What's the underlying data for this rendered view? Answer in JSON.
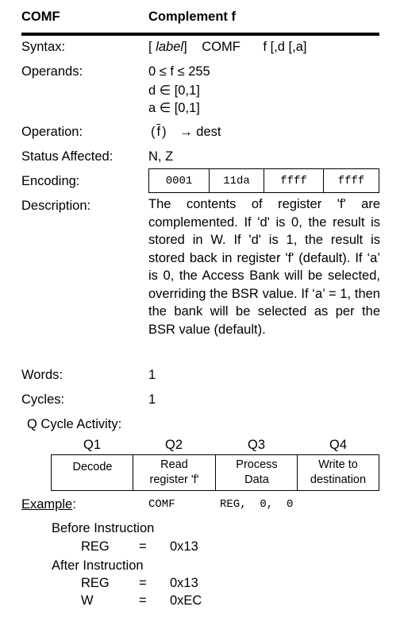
{
  "header": {
    "mnemonic": "COMF",
    "title": "Complement f"
  },
  "syntax": {
    "label": "Syntax:",
    "open_bracket": "[",
    "label_arg": "label",
    "close_bracket": "]",
    "mnemonic": "COMF",
    "operands": "f [,d [,a]"
  },
  "operands": {
    "label": "Operands:",
    "lines": [
      "0 ≤ f ≤ 255",
      "d ∈ [0,1]",
      "a ∈ [0,1]"
    ]
  },
  "operation": {
    "label": "Operation:",
    "open_paren": "(",
    "operand": "f",
    "close_paren": ")",
    "result": "→ dest"
  },
  "status": {
    "label": "Status Affected:",
    "value": "N, Z"
  },
  "encoding": {
    "label": "Encoding:",
    "fields": [
      "0001",
      "11da",
      "ffff",
      "ffff"
    ]
  },
  "description": {
    "label": "Description:",
    "text": "The contents of register 'f' are complemented. If 'd' is 0, the result is stored in W. If 'd' is 1, the result is stored back in register 'f' (default). If ‘a’ is 0, the Access Bank will be selected, overriding the BSR value. If ‘a’ = 1, then the bank will be selected as per the BSR value (default)."
  },
  "words": {
    "label": "Words:",
    "value": "1"
  },
  "cycles": {
    "label": "Cycles:",
    "value": "1"
  },
  "q_cycle": {
    "label": "Q Cycle Activity:",
    "headers": [
      "Q1",
      "Q2",
      "Q3",
      "Q4"
    ],
    "cells": [
      [
        "Decode"
      ],
      [
        "Read",
        "register 'f'"
      ],
      [
        "Process",
        "Data"
      ],
      [
        "Write to",
        "destination"
      ]
    ]
  },
  "example": {
    "label": "Example",
    "colon": ":",
    "instruction": "COMF",
    "args": "REG,  0,  0",
    "before": {
      "title": "Before Instruction",
      "rows": [
        {
          "reg": "REG",
          "eq": "=",
          "value": "0x13"
        }
      ]
    },
    "after": {
      "title": "After Instruction",
      "rows": [
        {
          "reg": "REG",
          "eq": "=",
          "value": "0x13"
        },
        {
          "reg": "W",
          "eq": "=",
          "value": "0xEC"
        }
      ]
    }
  }
}
